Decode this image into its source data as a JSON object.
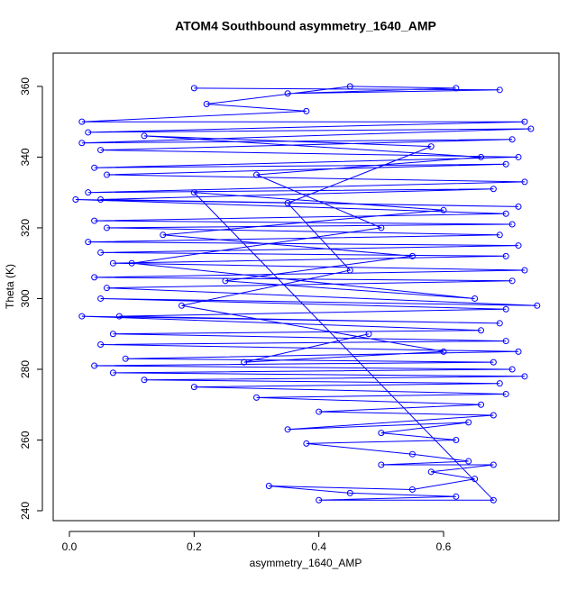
{
  "chart_data": {
    "type": "scatter",
    "title": "ATOM4 Southbound asymmetry_1640_AMP",
    "x_label": "asymmetry_1640_AMP",
    "y_label": "Theta (K)",
    "color": "#0000ff",
    "connect_points": true,
    "xlim": [
      -0.026,
      0.785
    ],
    "ylim": [
      237.2,
      369.4
    ],
    "xticks": [
      {
        "value": 0,
        "label": "0.0"
      },
      {
        "value": 0.2,
        "label": "0.2"
      },
      {
        "value": 0.4,
        "label": "0.4"
      },
      {
        "value": 0.6,
        "label": "0.6"
      }
    ],
    "yticks": [
      240,
      260,
      280,
      300,
      320,
      340,
      360
    ],
    "x": [
      0.2,
      0.69,
      0.35,
      0.62,
      0.45,
      0.22,
      0.38,
      0.02,
      0.73,
      0.03,
      0.74,
      0.02,
      0.71,
      0.05,
      0.72,
      0.04,
      0.7,
      0.06,
      0.73,
      0.03,
      0.68,
      0.05,
      0.72,
      0.01,
      0.7,
      0.04,
      0.71,
      0.06,
      0.69,
      0.03,
      0.72,
      0.05,
      0.7,
      0.07,
      0.73,
      0.04,
      0.71,
      0.06,
      0.75,
      0.05,
      0.7,
      0.08,
      0.69,
      0.02,
      0.66,
      0.07,
      0.7,
      0.05,
      0.72,
      0.09,
      0.68,
      0.04,
      0.71,
      0.07,
      0.73,
      0.12,
      0.69,
      0.2,
      0.7,
      0.3,
      0.66,
      0.4,
      0.68,
      0.35,
      0.64,
      0.5,
      0.62,
      0.38,
      0.55,
      0.64,
      0.5,
      0.68,
      0.58,
      0.65,
      0.55,
      0.32,
      0.45,
      0.62,
      0.4,
      0.68,
      0.2,
      0.6,
      0.15,
      0.55,
      0.25,
      0.65,
      0.1,
      0.5,
      0.3,
      0.66,
      0.12,
      0.58,
      0.35,
      0.45,
      0.18,
      0.6,
      0.28,
      0.48
    ],
    "y": [
      359.5,
      359,
      358,
      359.5,
      360,
      355,
      353,
      350,
      350,
      347,
      348,
      344,
      345,
      342,
      340,
      337,
      338,
      335,
      333,
      330,
      331,
      328,
      326,
      328,
      324,
      322,
      321,
      320,
      318,
      316,
      315,
      313,
      312,
      310,
      308,
      306,
      305,
      303,
      298,
      300,
      297,
      295,
      293,
      295,
      291,
      290,
      288,
      287,
      285,
      283,
      282,
      281,
      280,
      279,
      278,
      277,
      276,
      275,
      273,
      272,
      270,
      268,
      267,
      263,
      265,
      262,
      260,
      259,
      256,
      254,
      253,
      253,
      251,
      249,
      246,
      247,
      245,
      244,
      243,
      243,
      330,
      325,
      318,
      312,
      305,
      300,
      310,
      320,
      335,
      340,
      346,
      343,
      327,
      308,
      298,
      285,
      282,
      290
    ]
  }
}
